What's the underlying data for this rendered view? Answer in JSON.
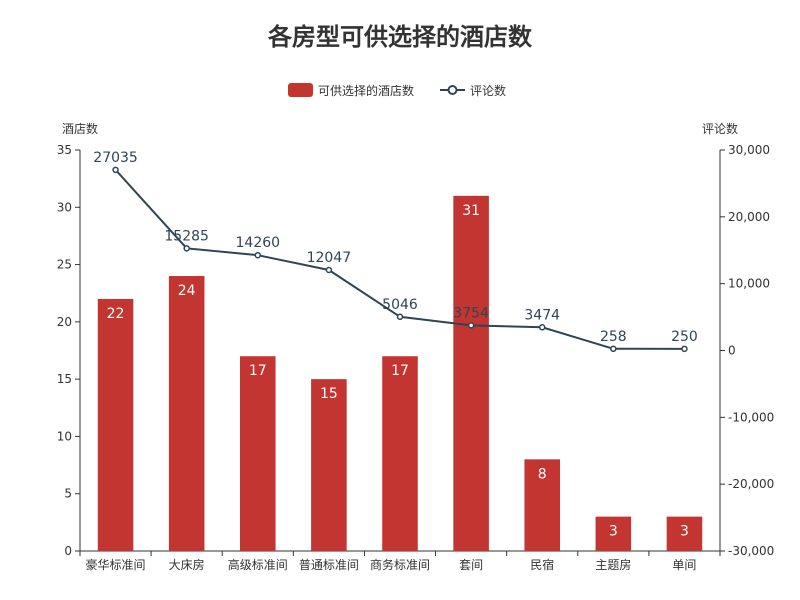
{
  "chart_data": {
    "title": "各房型可供选择的酒店数",
    "categories": [
      "豪华标准间",
      "大床房",
      "高级标准间",
      "普通标准间",
      "商务标准间",
      "套间",
      "民宿",
      "主题房",
      "单间"
    ],
    "series": [
      {
        "name": "可供选择的酒店数",
        "type": "bar",
        "axis": "left",
        "values": [
          22,
          24,
          17,
          15,
          17,
          31,
          8,
          3,
          3
        ],
        "color": "#c23531"
      },
      {
        "name": "评论数",
        "type": "line",
        "axis": "right",
        "values": [
          27035,
          15285,
          14260,
          12047,
          5046,
          3754,
          3474,
          258,
          250
        ],
        "color": "#2f4554"
      }
    ],
    "left_axis": {
      "name": "酒店数",
      "min": 0,
      "max": 35,
      "ticks": [
        0,
        5,
        10,
        15,
        20,
        25,
        30,
        35
      ],
      "tick_labels": [
        "0",
        "5",
        "10",
        "15",
        "20",
        "25",
        "30",
        "35"
      ]
    },
    "right_axis": {
      "name": "评论数",
      "min": -30000,
      "max": 30000,
      "ticks": [
        -30000,
        -20000,
        -10000,
        0,
        10000,
        20000,
        30000
      ],
      "tick_labels": [
        "-30,000",
        "-20,000",
        "-10,000",
        "0",
        "10,000",
        "20,000",
        "30,000"
      ]
    },
    "legend_position": "top-center"
  }
}
